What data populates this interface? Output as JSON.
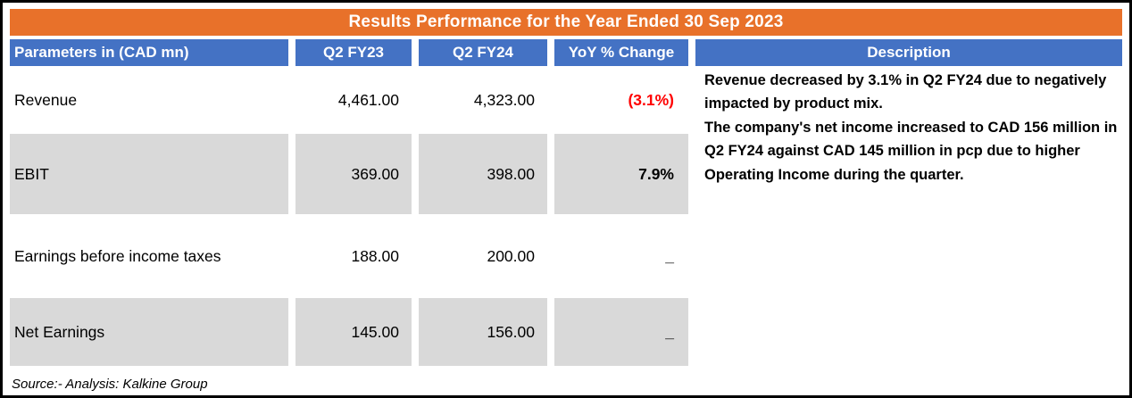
{
  "table": {
    "title": "Results Performance for the Year Ended 30 Sep 2023",
    "columns": [
      "Parameters in (CAD mn)",
      "Q2 FY23",
      "Q2 FY24",
      "YoY % Change",
      "Description"
    ],
    "rows": [
      {
        "parameter": "Revenue",
        "q2fy23": "4,461.00",
        "q2fy24": "4,323.00",
        "yoy": "(3.1%)"
      },
      {
        "parameter": "EBIT",
        "q2fy23": "369.00",
        "q2fy24": "398.00",
        "yoy": "7.9%"
      },
      {
        "parameter": "Earnings before income taxes",
        "q2fy23": "188.00",
        "q2fy24": "200.00",
        "yoy": "_"
      },
      {
        "parameter": "Net Earnings",
        "q2fy23": "145.00",
        "q2fy24": "156.00",
        "yoy": "_"
      }
    ],
    "description": [
      "Revenue decreased  by 3.1% in Q2 FY24 due to negatively impacted by product mix.",
      "The company's  net income increased to CAD 156  million in  Q2 FY24  against CAD 145 million in pcp due to higher Operating Income during the quarter."
    ],
    "source": "Source:- Analysis: Kalkine Group"
  },
  "colors": {
    "title_bg": "#E8712A",
    "header_bg": "#4472C4",
    "row_shaded": "#D9D9D9",
    "negative_value": "#FF0000",
    "header_text": "#FFFFFF"
  },
  "chart_data": {
    "type": "table",
    "title": "Results Performance for the Year Ended 30 Sep 2023",
    "columns": [
      "Parameters in (CAD mn)",
      "Q2 FY23",
      "Q2 FY24",
      "YoY % Change"
    ],
    "rows": [
      {
        "parameter": "Revenue",
        "q2_fy23": 4461.0,
        "q2_fy24": 4323.0,
        "yoy_pct_change": -3.1
      },
      {
        "parameter": "EBIT",
        "q2_fy23": 369.0,
        "q2_fy24": 398.0,
        "yoy_pct_change": 7.9
      },
      {
        "parameter": "Earnings before income taxes",
        "q2_fy23": 188.0,
        "q2_fy24": 200.0,
        "yoy_pct_change": null
      },
      {
        "parameter": "Net Earnings",
        "q2_fy23": 145.0,
        "q2_fy24": 156.0,
        "yoy_pct_change": null
      }
    ],
    "notes": [
      "Revenue decreased by 3.1% in Q2 FY24 due to negatively impacted by product mix.",
      "The company's net income increased to CAD 156 million in Q2 FY24 against CAD 145 million in pcp due to higher Operating Income during the quarter."
    ],
    "source": "Source:- Analysis: Kalkine Group"
  }
}
